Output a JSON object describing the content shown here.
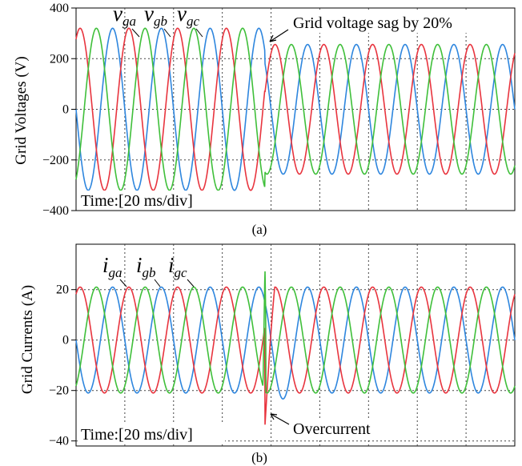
{
  "chart_data": [
    {
      "id": "a",
      "type": "line",
      "caption": "(a)",
      "ylabel": "Grid Voltages (V)",
      "ylim": [
        -400,
        400
      ],
      "yticks": [
        -400,
        -200,
        0,
        200,
        400
      ],
      "time_note": "Time:[20 ms/div]",
      "x_units": "ms",
      "xlim_ms": [
        0,
        180
      ],
      "grid": true,
      "event_time_ms": 77.5,
      "annotation": "Grid voltage sag by 20%",
      "frequency_hz": 50,
      "series": [
        {
          "name": "v_ga",
          "label_main": "v",
          "label_sub": "ga",
          "color": "#2e86de",
          "phase_deg": 180,
          "amplitude_before": 320,
          "amplitude_after": 256
        },
        {
          "name": "v_gb",
          "label_main": "v",
          "label_sub": "gb",
          "color": "#e8343e",
          "phase_deg": 60,
          "amplitude_before": 320,
          "amplitude_after": 256
        },
        {
          "name": "v_gc",
          "label_main": "v",
          "label_sub": "gc",
          "color": "#3fbf3a",
          "phase_deg": -60,
          "amplitude_before": 320,
          "amplitude_after": 256
        }
      ]
    },
    {
      "id": "b",
      "type": "line",
      "caption": "(b)",
      "ylabel": "Grid Currents (A)",
      "ylim": [
        -42,
        38
      ],
      "yticks": [
        -40,
        -20,
        0,
        20
      ],
      "time_note": "Time:[20 ms/div]",
      "x_units": "ms",
      "xlim_ms": [
        0,
        180
      ],
      "grid": true,
      "event_time_ms": 77.5,
      "annotation": "Overcurrent",
      "frequency_hz": 50,
      "overcurrent_peak_a": -34,
      "spike_peak_a": 29,
      "series": [
        {
          "name": "i_ga",
          "label_main": "i",
          "label_sub": "ga",
          "color": "#2e86de",
          "phase_deg": 180,
          "amplitude_before": 21,
          "amplitude_after": 21
        },
        {
          "name": "i_gb",
          "label_main": "i",
          "label_sub": "gb",
          "color": "#e8343e",
          "phase_deg": 60,
          "amplitude_before": 21,
          "amplitude_after": 21
        },
        {
          "name": "i_gc",
          "label_main": "i",
          "label_sub": "gc",
          "color": "#3fbf3a",
          "phase_deg": -60,
          "amplitude_before": 21,
          "amplitude_after": 21
        }
      ]
    }
  ]
}
